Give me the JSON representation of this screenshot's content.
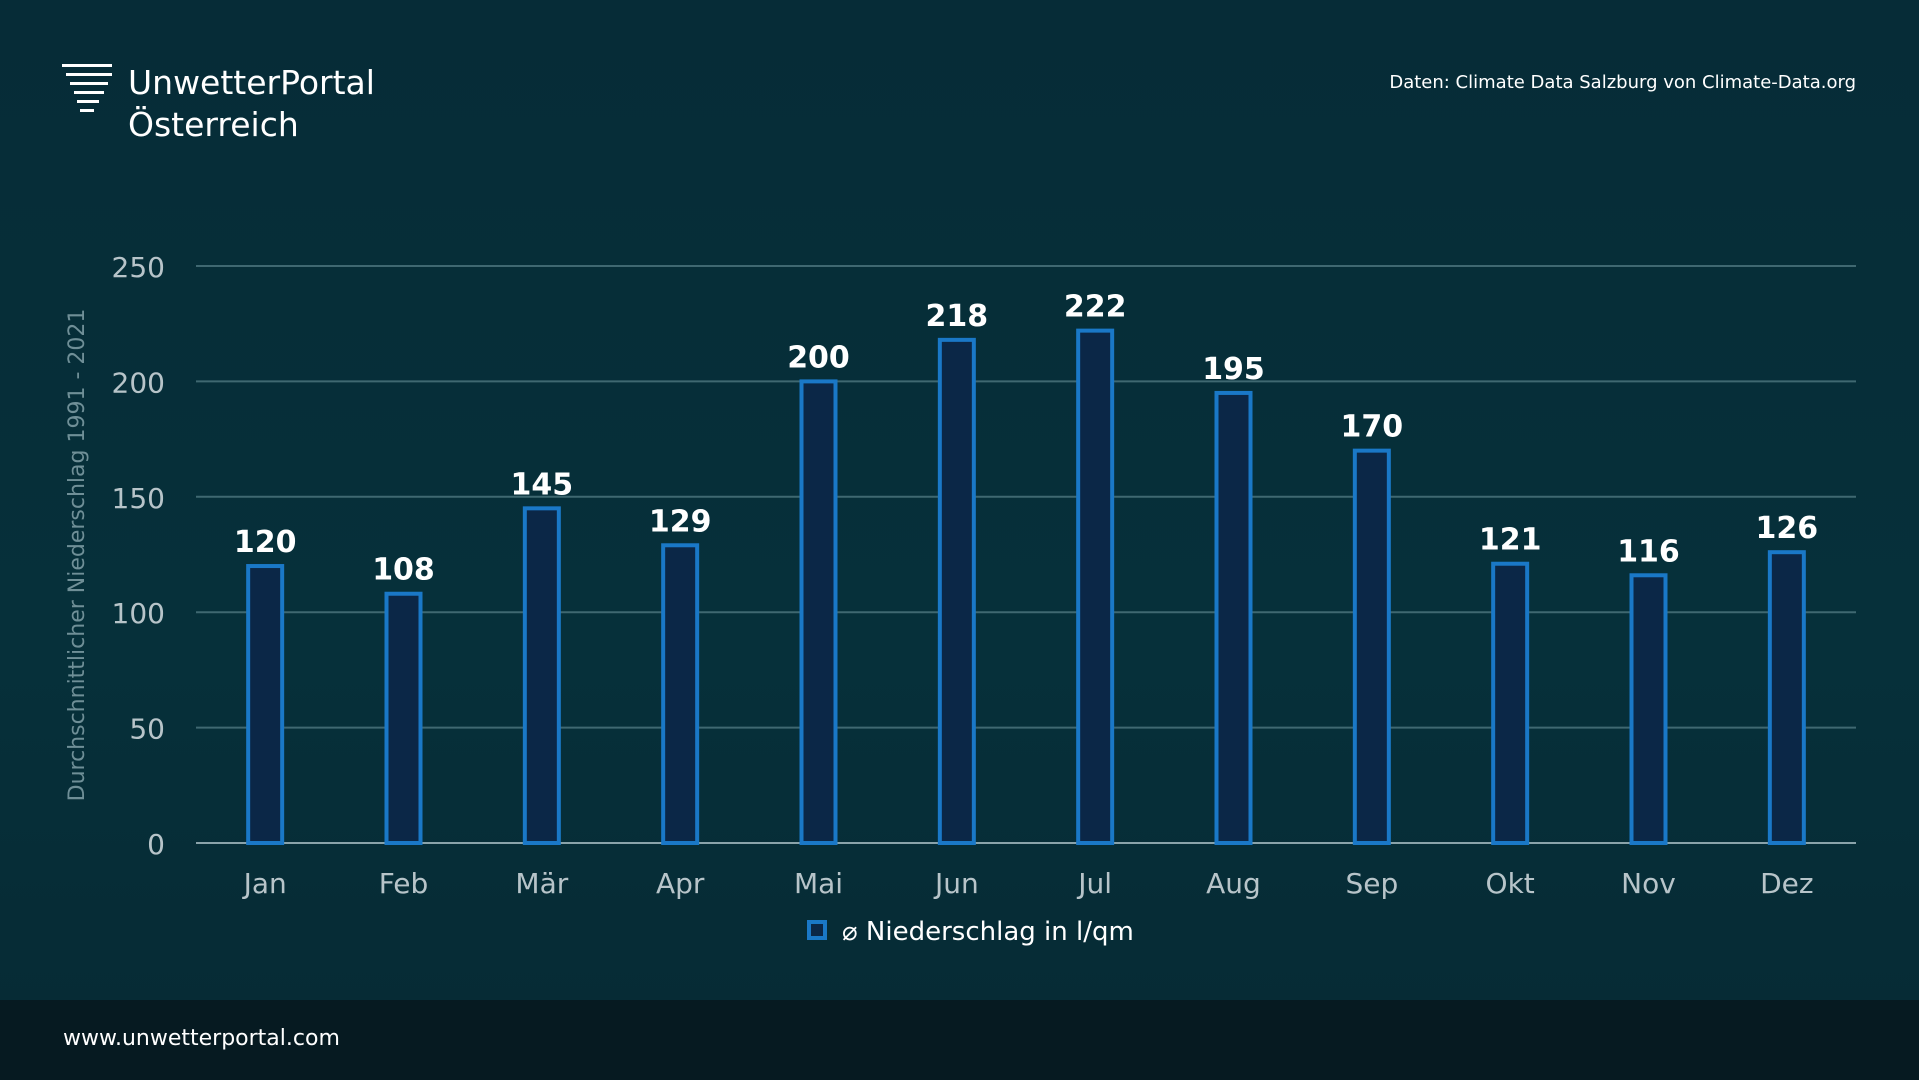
{
  "brand": {
    "line1": "UnwetterPortal",
    "line2": "Österreich"
  },
  "source": "Daten: Climate Data Salzburg von Climate-Data.org",
  "footer": {
    "url": "www.unwetterportal.com"
  },
  "colors": {
    "bar_fill": "#0b2747",
    "bar_stroke": "#1a78c7",
    "grid": "#3f6871",
    "axis_text": "#b7c4c9",
    "label_text": "#ffffff"
  },
  "chart_data": {
    "type": "bar",
    "title": "",
    "xlabel": "",
    "ylabel": "Durchschnittlicher Niederschlag 1991 - 2021",
    "categories": [
      "Jan",
      "Feb",
      "Mär",
      "Apr",
      "Mai",
      "Jun",
      "Jul",
      "Aug",
      "Sep",
      "Okt",
      "Nov",
      "Dez"
    ],
    "series": [
      {
        "name": "⌀ Niederschlag in l/qm",
        "values": [
          120,
          108,
          145,
          129,
          200,
          218,
          222,
          195,
          170,
          121,
          116,
          126
        ]
      }
    ],
    "ylim": [
      0,
      250
    ],
    "yticks": [
      0,
      50,
      100,
      150,
      200,
      250
    ],
    "grid": true,
    "legend_position": "bottom-center",
    "data_labels": true
  }
}
